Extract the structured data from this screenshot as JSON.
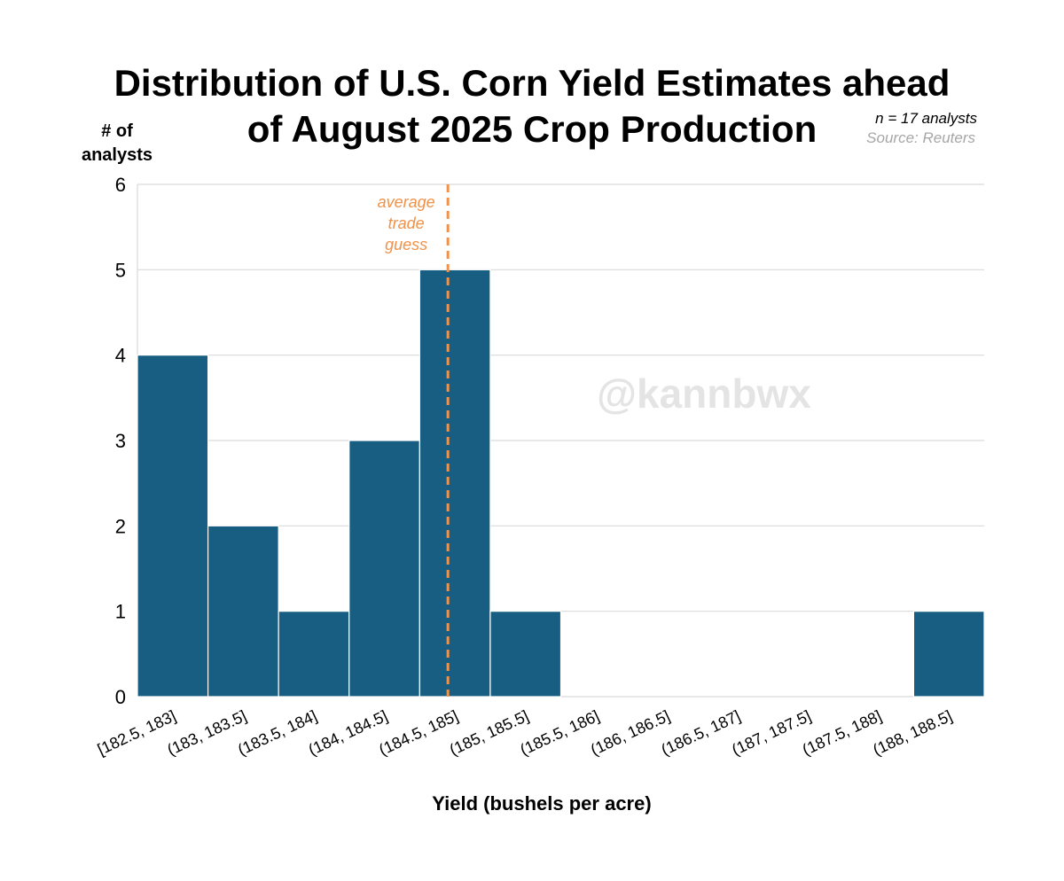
{
  "colors": {
    "bar": "#175e82",
    "grid": "#d9d9d9",
    "average_line": "#f0924a",
    "source": "#a6a6a6",
    "watermark": "#e4e4e4"
  },
  "chart_data": {
    "type": "bar",
    "title_lines": [
      "Distribution of U.S. Corn Yield Estimates ahead",
      "of August 2025 Crop Production"
    ],
    "ylabel_lines": [
      "# of",
      "analysts"
    ],
    "xlabel": "Yield (bushels per acre)",
    "categories": [
      "[182.5, 183]",
      "(183, 183.5]",
      "(183.5, 184]",
      "(184, 184.5]",
      "(184.5, 185]",
      "(185, 185.5]",
      "(185.5, 186]",
      "(186, 186.5]",
      "(186.5, 187]",
      "(187, 187.5]",
      "(187.5, 188]",
      "(188, 188.5]"
    ],
    "values": [
      4,
      2,
      1,
      3,
      5,
      1,
      0,
      0,
      0,
      0,
      0,
      1
    ],
    "ylim": [
      0,
      6
    ],
    "yticks": [
      0,
      1,
      2,
      3,
      4,
      5,
      6
    ],
    "grid": true,
    "average_trade_guess": 184.7,
    "average_label_lines": [
      "average",
      "trade",
      "guess"
    ],
    "n_note": "n = 17 analysts",
    "source_note": "Source: Reuters",
    "watermark": "@kannbwx"
  }
}
